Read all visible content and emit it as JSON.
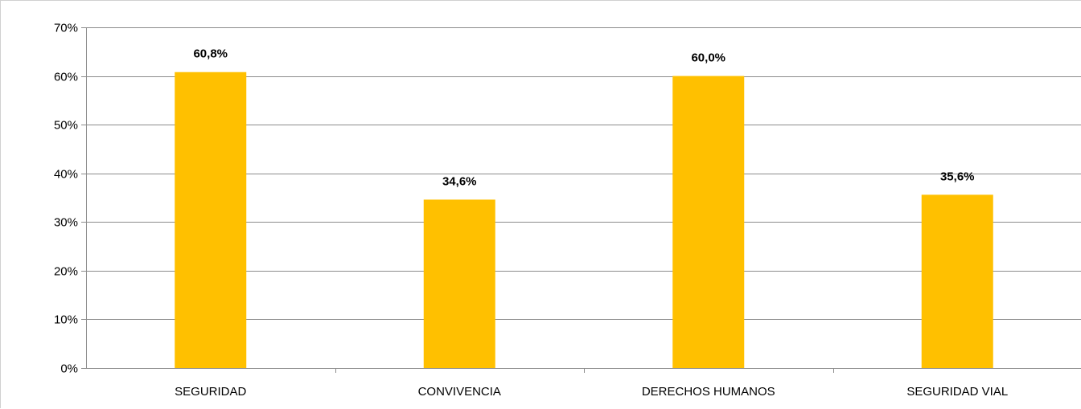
{
  "chart_data": {
    "type": "bar",
    "categories": [
      "SEGURIDAD",
      "CONVIVENCIA",
      "DERECHOS HUMANOS",
      "SEGURIDAD VIAL"
    ],
    "values": [
      60.8,
      34.6,
      60.0,
      35.6
    ],
    "data_labels": [
      "60,8%",
      "34,6%",
      "60,0%",
      "35,6%"
    ],
    "y_ticks": [
      0,
      10,
      20,
      30,
      40,
      50,
      60,
      70
    ],
    "y_tick_labels": [
      "0%",
      "10%",
      "20%",
      "30%",
      "40%",
      "50%",
      "60%",
      "70%"
    ],
    "ylim": [
      0,
      70
    ],
    "grid": true,
    "legend": "none",
    "title": "",
    "xlabel": "",
    "ylabel": "",
    "colors": {
      "bar": "#FFC000",
      "grid": "#8c8c8c",
      "axis": "#8c8c8c"
    }
  }
}
